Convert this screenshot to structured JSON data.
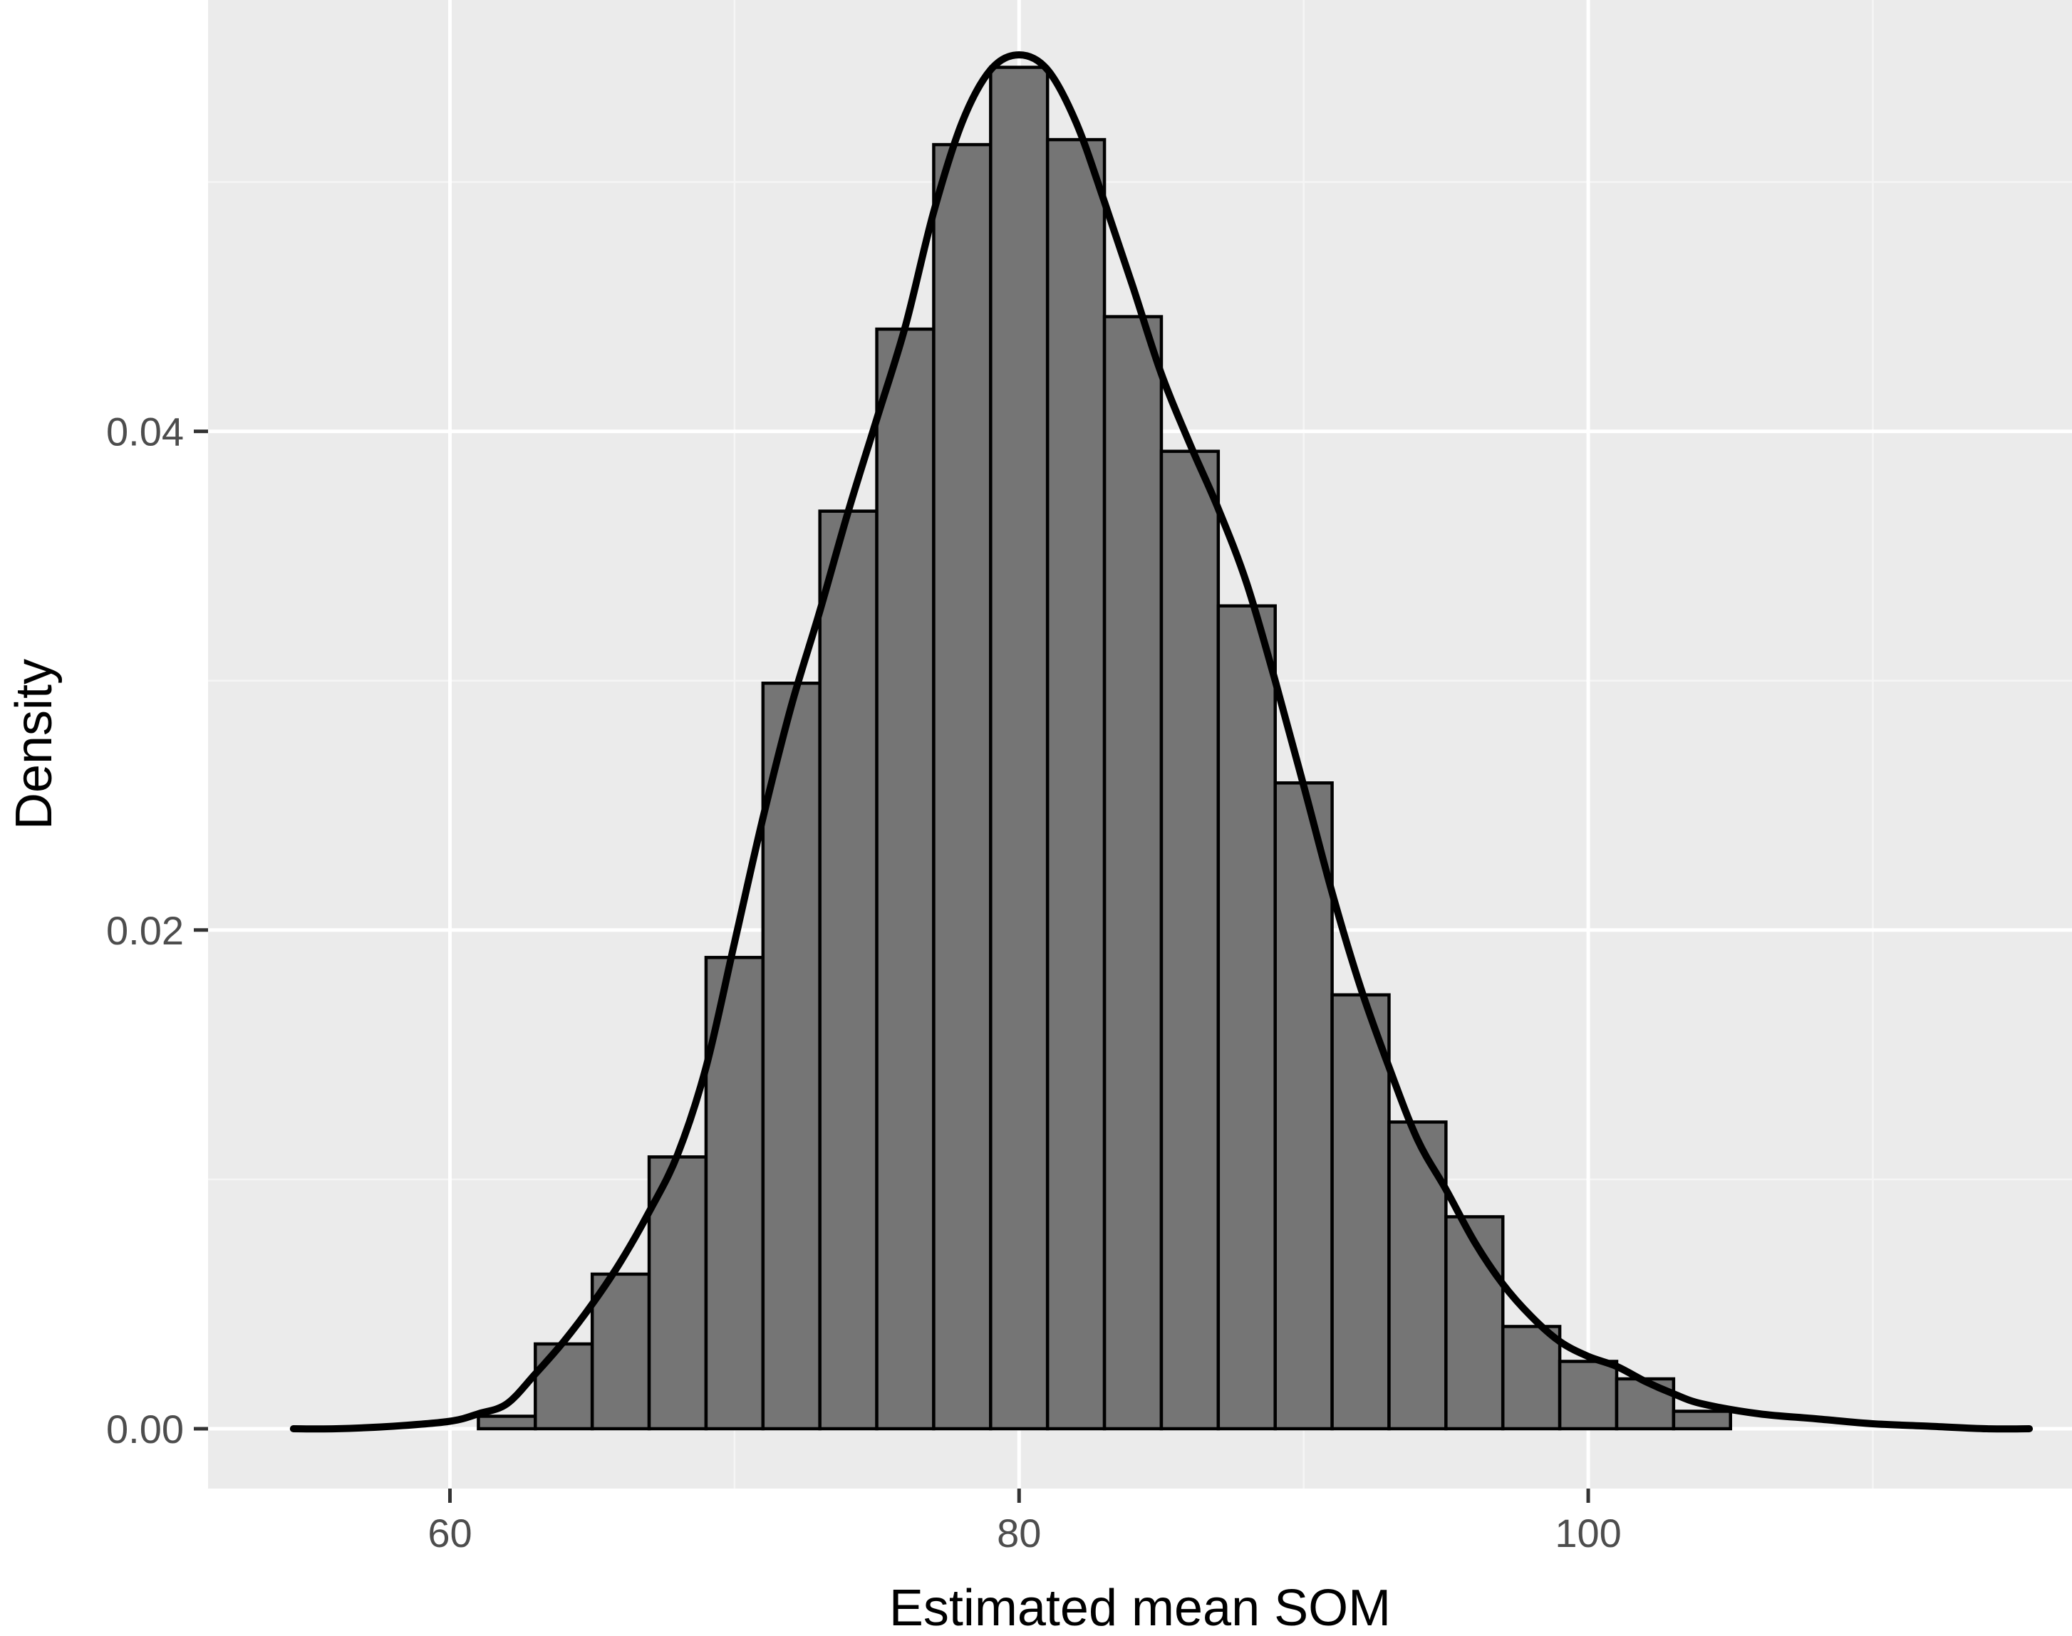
{
  "chart_data": {
    "type": "bar",
    "xlabel": "Estimated mean SOM",
    "ylabel": "Density",
    "xlim": [
      51.5,
      117
    ],
    "ylim": [
      -0.0024,
      0.0573
    ],
    "x_ticks": [
      60,
      80,
      100
    ],
    "x_tick_labels": [
      "60",
      "80",
      "100"
    ],
    "y_ticks": [
      0.0,
      0.02,
      0.04
    ],
    "y_tick_labels": [
      "0.00",
      "0.02",
      "0.04"
    ],
    "grid": true,
    "bins": [
      {
        "x0": 61,
        "x1": 63,
        "density": 0.0005
      },
      {
        "x0": 63,
        "x1": 65,
        "density": 0.0034
      },
      {
        "x0": 65,
        "x1": 67,
        "density": 0.0062
      },
      {
        "x0": 67,
        "x1": 69,
        "density": 0.0109
      },
      {
        "x0": 69,
        "x1": 71,
        "density": 0.0189
      },
      {
        "x0": 71,
        "x1": 73,
        "density": 0.0299
      },
      {
        "x0": 73,
        "x1": 75,
        "density": 0.0368
      },
      {
        "x0": 75,
        "x1": 77,
        "density": 0.0441
      },
      {
        "x0": 77,
        "x1": 79,
        "density": 0.0515
      },
      {
        "x0": 79,
        "x1": 81,
        "density": 0.0546
      },
      {
        "x0": 81,
        "x1": 83,
        "density": 0.0517
      },
      {
        "x0": 83,
        "x1": 85,
        "density": 0.0446
      },
      {
        "x0": 85,
        "x1": 87,
        "density": 0.0392
      },
      {
        "x0": 87,
        "x1": 89,
        "density": 0.033
      },
      {
        "x0": 89,
        "x1": 91,
        "density": 0.0259
      },
      {
        "x0": 91,
        "x1": 93,
        "density": 0.0174
      },
      {
        "x0": 93,
        "x1": 95,
        "density": 0.0123
      },
      {
        "x0": 95,
        "x1": 97,
        "density": 0.0085
      },
      {
        "x0": 97,
        "x1": 99,
        "density": 0.0041
      },
      {
        "x0": 99,
        "x1": 101,
        "density": 0.0027
      },
      {
        "x0": 101,
        "x1": 103,
        "density": 0.002
      },
      {
        "x0": 103,
        "x1": 105,
        "density": 0.0007
      }
    ],
    "density_curve": {
      "x": [
        54.5,
        56,
        58,
        60,
        61,
        62,
        63,
        64,
        65,
        66,
        67,
        68,
        69,
        70,
        71,
        72,
        73,
        74,
        75,
        76,
        77,
        78,
        79,
        80,
        81,
        82,
        83,
        84,
        85,
        86,
        87,
        88,
        89,
        90,
        91,
        92,
        93,
        94,
        95,
        96,
        97,
        98,
        99,
        100,
        101,
        102,
        103,
        104,
        106,
        108,
        110,
        112,
        114,
        115.5
      ],
      "y": [
        0.0,
        0.0,
        0.0001,
        0.0003,
        0.0006,
        0.001,
        0.0022,
        0.0035,
        0.005,
        0.0067,
        0.0087,
        0.011,
        0.0145,
        0.0195,
        0.0245,
        0.029,
        0.0328,
        0.0368,
        0.0405,
        0.0442,
        0.0488,
        0.0524,
        0.0545,
        0.0551,
        0.0545,
        0.0524,
        0.0492,
        0.0458,
        0.0423,
        0.0395,
        0.0369,
        0.0339,
        0.03,
        0.0258,
        0.0215,
        0.0177,
        0.0145,
        0.0116,
        0.0096,
        0.0075,
        0.0058,
        0.0045,
        0.0035,
        0.0029,
        0.0025,
        0.0019,
        0.0014,
        0.001,
        0.0006,
        0.0004,
        0.0002,
        0.0001,
        0.0,
        0.0
      ]
    },
    "colors": {
      "panel_background": "#ebebeb",
      "grid_major": "#ffffff",
      "grid_minor": "#f5f5f5",
      "bar_fill": "#757575",
      "bar_outline": "#000000",
      "curve": "#000000"
    }
  }
}
